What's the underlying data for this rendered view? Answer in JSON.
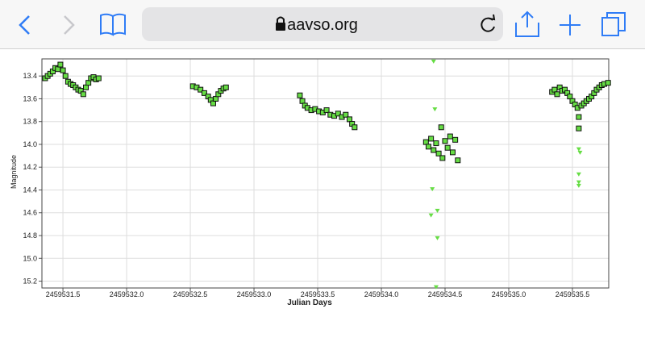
{
  "browser": {
    "url": "aavso.org"
  },
  "chart_data": {
    "type": "scatter",
    "xlabel": "Julian Days",
    "ylabel": "Magnitude",
    "xlim": [
      2459531.335,
      2459535.785
    ],
    "ylim": [
      13.25,
      15.26
    ],
    "y_inverted": true,
    "grid": true,
    "xticks": [
      2459531.5,
      {
        "value": 2459532.0,
        "label": "2459532.0"
      },
      2459532.5,
      {
        "value": 2459533.0,
        "label": "2459533.0"
      },
      2459533.5,
      {
        "value": 2459534.0,
        "label": "2459534.0"
      },
      2459534.5,
      {
        "value": 2459535.0,
        "label": "2459535.0"
      },
      2459535.5
    ],
    "yticks": [
      13.4,
      13.6,
      13.8,
      {
        "value": 14.0,
        "label": "14.0"
      },
      14.2,
      14.4,
      14.6,
      14.8,
      {
        "value": 15.0,
        "label": "15.0"
      },
      15.2
    ],
    "series": [
      {
        "marker": "square",
        "color": "#66dd44",
        "x": [
          2459531.36,
          2459531.38,
          2459531.4,
          2459531.42,
          2459531.44,
          2459531.46,
          2459531.48,
          2459531.5,
          2459531.52,
          2459531.54,
          2459531.56,
          2459531.58,
          2459531.6,
          2459531.62,
          2459531.64,
          2459531.66,
          2459531.68,
          2459531.7,
          2459531.72,
          2459531.74,
          2459531.76,
          2459531.78,
          2459532.52,
          2459532.55,
          2459532.58,
          2459532.61,
          2459532.64,
          2459532.66,
          2459532.68,
          2459532.7,
          2459532.72,
          2459532.74,
          2459532.76,
          2459532.78,
          2459533.36,
          2459533.38,
          2459533.4,
          2459533.42,
          2459533.45,
          2459533.48,
          2459533.51,
          2459533.54,
          2459533.57,
          2459533.6,
          2459533.63,
          2459533.66,
          2459533.69,
          2459533.72,
          2459533.75,
          2459533.77,
          2459533.79,
          2459534.35,
          2459534.37,
          2459534.39,
          2459534.41,
          2459534.43,
          2459534.45,
          2459534.47,
          2459534.48,
          2459534.5,
          2459534.52,
          2459534.54,
          2459534.56,
          2459534.58,
          2459534.6,
          2459535.34,
          2459535.36,
          2459535.38,
          2459535.4,
          2459535.42,
          2459535.44,
          2459535.46,
          2459535.48,
          2459535.5,
          2459535.52,
          2459535.54,
          2459535.55,
          2459535.55,
          2459535.57,
          2459535.59,
          2459535.61,
          2459535.63,
          2459535.65,
          2459535.67,
          2459535.69,
          2459535.71,
          2459535.73,
          2459535.75,
          2459535.78
        ],
        "values": [
          13.42,
          13.4,
          13.38,
          13.36,
          13.33,
          13.34,
          13.3,
          13.35,
          13.4,
          13.45,
          13.47,
          13.48,
          13.5,
          13.52,
          13.53,
          13.56,
          13.5,
          13.46,
          13.42,
          13.41,
          13.43,
          13.42,
          13.49,
          13.5,
          13.52,
          13.55,
          13.58,
          13.61,
          13.64,
          13.6,
          13.56,
          13.53,
          13.51,
          13.5,
          13.57,
          13.62,
          13.66,
          13.68,
          13.7,
          13.69,
          13.71,
          13.72,
          13.7,
          13.74,
          13.75,
          13.73,
          13.76,
          13.74,
          13.78,
          13.82,
          13.85,
          13.98,
          14.02,
          13.95,
          14.05,
          13.99,
          14.08,
          13.85,
          14.12,
          13.97,
          14.03,
          13.93,
          14.07,
          13.96,
          14.14,
          13.54,
          13.52,
          13.56,
          13.5,
          13.53,
          13.52,
          13.55,
          13.58,
          13.62,
          13.65,
          13.68,
          13.76,
          13.86,
          13.66,
          13.64,
          13.62,
          13.6,
          13.58,
          13.55,
          13.52,
          13.5,
          13.48,
          13.47,
          13.46
        ]
      },
      {
        "marker": "triangle-down",
        "color": "#66dd44",
        "x": [
          2459534.41,
          2459534.42,
          2459534.4,
          2459534.39,
          2459534.44,
          2459534.44,
          2459534.43,
          2459535.55,
          2459535.56,
          2459535.55,
          2459535.55,
          2459535.55
        ],
        "values": [
          13.27,
          13.69,
          14.39,
          14.62,
          14.58,
          14.82,
          15.25,
          14.04,
          14.07,
          14.26,
          14.33,
          14.36
        ]
      }
    ]
  }
}
